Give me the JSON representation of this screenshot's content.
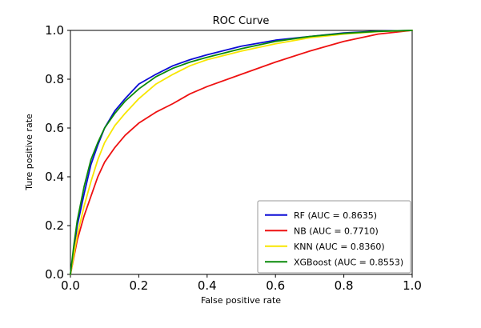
{
  "chart_data": {
    "type": "line",
    "title": "ROC Curve",
    "xlabel": "False positive rate",
    "ylabel": "Ture positive rate",
    "xlim": [
      0.0,
      1.0
    ],
    "ylim": [
      0.0,
      1.0
    ],
    "xticks": [
      0.0,
      0.2,
      0.4,
      0.6,
      0.8,
      1.0
    ],
    "yticks": [
      0.0,
      0.2,
      0.4,
      0.6,
      0.8,
      1.0
    ],
    "grid": false,
    "legend_position": "lower right",
    "series": [
      {
        "name": "RF",
        "auc": 0.8635,
        "label": "RF (AUC = 0.8635)",
        "color": "#0b0bd6",
        "x": [
          0,
          0.01,
          0.02,
          0.04,
          0.06,
          0.08,
          0.1,
          0.13,
          0.16,
          0.2,
          0.25,
          0.3,
          0.35,
          0.4,
          0.5,
          0.6,
          0.7,
          0.8,
          0.9,
          1.0
        ],
        "y": [
          0,
          0.1,
          0.2,
          0.33,
          0.45,
          0.53,
          0.6,
          0.67,
          0.72,
          0.78,
          0.82,
          0.855,
          0.88,
          0.9,
          0.935,
          0.96,
          0.975,
          0.99,
          0.997,
          1.0
        ]
      },
      {
        "name": "NB",
        "auc": 0.771,
        "label": "NB (AUC = 0.7710)",
        "color": "#ee1111",
        "x": [
          0,
          0.01,
          0.02,
          0.04,
          0.06,
          0.08,
          0.1,
          0.13,
          0.16,
          0.2,
          0.25,
          0.3,
          0.35,
          0.4,
          0.5,
          0.6,
          0.7,
          0.8,
          0.9,
          1.0
        ],
        "y": [
          0,
          0.07,
          0.14,
          0.24,
          0.32,
          0.4,
          0.46,
          0.52,
          0.57,
          0.62,
          0.665,
          0.7,
          0.74,
          0.77,
          0.82,
          0.87,
          0.915,
          0.955,
          0.985,
          1.0
        ]
      },
      {
        "name": "KNN",
        "auc": 0.836,
        "label": "KNN (AUC = 0.8360)",
        "color": "#f7e600",
        "x": [
          0,
          0.01,
          0.02,
          0.04,
          0.06,
          0.08,
          0.1,
          0.13,
          0.16,
          0.2,
          0.25,
          0.3,
          0.35,
          0.4,
          0.5,
          0.6,
          0.7,
          0.8,
          0.9,
          1.0
        ],
        "y": [
          0,
          0.08,
          0.16,
          0.28,
          0.38,
          0.47,
          0.54,
          0.61,
          0.66,
          0.72,
          0.78,
          0.82,
          0.855,
          0.88,
          0.915,
          0.945,
          0.97,
          0.985,
          0.995,
          1.0
        ]
      },
      {
        "name": "XGBoost",
        "auc": 0.8553,
        "label": "XGBoost (AUC = 0.8553)",
        "color": "#0a8a0a",
        "x": [
          0,
          0.01,
          0.02,
          0.04,
          0.06,
          0.08,
          0.1,
          0.13,
          0.16,
          0.2,
          0.25,
          0.3,
          0.35,
          0.4,
          0.5,
          0.6,
          0.7,
          0.8,
          0.9,
          1.0
        ],
        "y": [
          0,
          0.12,
          0.22,
          0.36,
          0.47,
          0.54,
          0.6,
          0.66,
          0.71,
          0.76,
          0.81,
          0.845,
          0.87,
          0.89,
          0.925,
          0.955,
          0.975,
          0.988,
          0.996,
          1.0
        ]
      }
    ]
  }
}
